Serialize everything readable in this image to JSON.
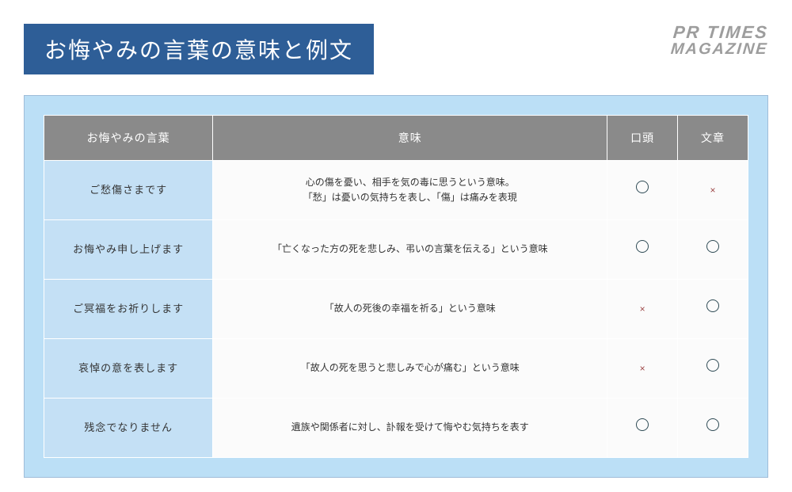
{
  "colors": {
    "title_bar_bg": "#2e5e97",
    "title_bar_text": "#ffffff",
    "logo_text": "#9d9d9d",
    "panel_bg": "#bbdff6",
    "panel_border": "#9fbcd8",
    "header_bg": "#8a8a8a",
    "header_text": "#ffffff",
    "phrase_cell_bg": "#c4e0f5",
    "data_cell_bg": "#fbfbfb",
    "cell_border": "#ffffff",
    "circle_color": "#2f4b55",
    "x_color": "#9e4848",
    "body_text": "#333333"
  },
  "title": "お悔やみの言葉の意味と例文",
  "logo": {
    "line1": "PR TIMES",
    "line2": "MAGAZINE"
  },
  "table": {
    "col_widths": [
      "24%",
      "56%",
      "10%",
      "10%"
    ],
    "columns": [
      "お悔やみの言葉",
      "意味",
      "口頭",
      "文章"
    ],
    "rows": [
      {
        "phrase": "ご愁傷さまです",
        "meaning": "心の傷を憂い、相手を気の毒に思うという意味。\n「愁」は憂いの気持ちを表し、「傷」は痛みを表現",
        "oral": "○",
        "written": "×"
      },
      {
        "phrase": "お悔やみ申し上げます",
        "meaning": "「亡くなった方の死を悲しみ、弔いの言葉を伝える」という意味",
        "oral": "○",
        "written": "○"
      },
      {
        "phrase": "ご冥福をお祈りします",
        "meaning": "「故人の死後の幸福を祈る」という意味",
        "oral": "×",
        "written": "○"
      },
      {
        "phrase": "哀悼の意を表します",
        "meaning": "「故人の死を思うと悲しみで心が痛む」という意味",
        "oral": "×",
        "written": "○"
      },
      {
        "phrase": "残念でなりません",
        "meaning": "遺族や関係者に対し、訃報を受けて悔やむ気持ちを表す",
        "oral": "○",
        "written": "○"
      }
    ]
  }
}
